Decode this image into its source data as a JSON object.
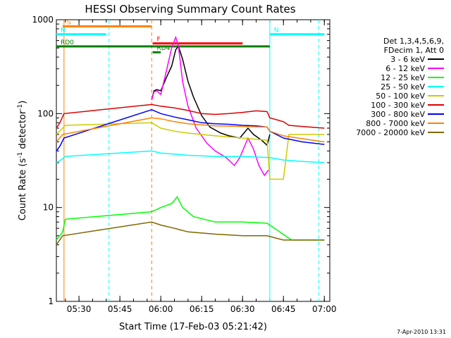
{
  "chart_data": {
    "type": "line",
    "title": "HESSI Observing Summary Count Rates",
    "xlabel": "Start Time (17-Feb-03 05:21:42)",
    "ylabel": "Count Rate (s⁻¹ detector⁻¹)",
    "ylabel_main": "Count Rate (s",
    "ylabel_sup1": "-1",
    "ylabel_mid": " detector",
    "ylabel_sup2": "-1",
    "ylabel_end": ")",
    "x_scale": "time",
    "x_range": [
      "05:21:42",
      "07:02:00"
    ],
    "y_scale": "log",
    "y_range": [
      1,
      1000
    ],
    "x_ticks": [
      "05:30",
      "05:45",
      "06:00",
      "06:15",
      "06:30",
      "06:45",
      "07:00"
    ],
    "y_ticks": [
      "1",
      "10",
      "100",
      "1000"
    ],
    "timestamp": "7-Apr-2010 13:31",
    "legend_header": [
      "Det 1,3,4,5,6,9,",
      "FDecim 1, Att 0"
    ],
    "legend_placement": "right",
    "series": [
      {
        "name": "3 - 6 keV",
        "color": "#000000",
        "points": [
          [
            "05:56:40",
            140
          ],
          [
            "05:57:30",
            175
          ],
          [
            "05:58:30",
            180
          ],
          [
            "06:00:00",
            175
          ],
          [
            "06:02:00",
            240
          ],
          [
            "06:04:00",
            320
          ],
          [
            "06:05:30",
            480
          ],
          [
            "06:06:30",
            520
          ],
          [
            "06:08:00",
            380
          ],
          [
            "06:10:00",
            220
          ],
          [
            "06:12:00",
            150
          ],
          [
            "06:15:00",
            95
          ],
          [
            "06:18:00",
            72
          ],
          [
            "06:22:00",
            62
          ],
          [
            "06:25:00",
            58
          ],
          [
            "06:29:00",
            55
          ],
          [
            "06:32:00",
            70
          ],
          [
            "06:34:00",
            60
          ],
          [
            "06:37:00",
            52
          ],
          [
            "06:39:00",
            46
          ],
          [
            "06:40:00",
            60
          ]
        ]
      },
      {
        "name": "6 - 12 keV",
        "color": "#ff00ff",
        "points": [
          [
            "05:56:40",
            140
          ],
          [
            "05:57:30",
            170
          ],
          [
            "05:58:30",
            175
          ],
          [
            "06:00:00",
            160
          ],
          [
            "06:02:00",
            280
          ],
          [
            "06:04:00",
            500
          ],
          [
            "06:05:30",
            650
          ],
          [
            "06:06:30",
            520
          ],
          [
            "06:08:00",
            220
          ],
          [
            "06:10:00",
            120
          ],
          [
            "06:13:00",
            70
          ],
          [
            "06:17:00",
            48
          ],
          [
            "06:20:00",
            40
          ],
          [
            "06:24:00",
            34
          ],
          [
            "06:27:00",
            28
          ],
          [
            "06:29:00",
            34
          ],
          [
            "06:32:00",
            55
          ],
          [
            "06:34:00",
            42
          ],
          [
            "06:36:00",
            28
          ],
          [
            "06:38:00",
            22
          ],
          [
            "06:39:30",
            25
          ]
        ]
      },
      {
        "name": "12 - 25 keV",
        "color": "#00ff00",
        "points": [
          [
            "05:21:42",
            4.5
          ],
          [
            "05:24:00",
            5.5
          ],
          [
            "05:25:00",
            7.5
          ],
          [
            "05:56:40",
            9
          ],
          [
            "06:00:00",
            10
          ],
          [
            "06:04:00",
            11
          ],
          [
            "06:06:00",
            13
          ],
          [
            "06:08:00",
            10
          ],
          [
            "06:12:00",
            8
          ],
          [
            "06:20:00",
            7
          ],
          [
            "06:30:00",
            7
          ],
          [
            "06:39:00",
            6.8
          ],
          [
            "06:48:00",
            4.5
          ],
          [
            "06:58:00",
            4.5
          ],
          [
            "07:00:00",
            4.5
          ]
        ]
      },
      {
        "name": "25 - 50 keV",
        "color": "#00ffff",
        "points": [
          [
            "05:21:42",
            30
          ],
          [
            "05:24:00",
            33
          ],
          [
            "05:25:00",
            35
          ],
          [
            "05:56:40",
            40
          ],
          [
            "06:00:00",
            38
          ],
          [
            "06:05:00",
            37
          ],
          [
            "06:10:00",
            36
          ],
          [
            "06:20:00",
            35
          ],
          [
            "06:30:00",
            35
          ],
          [
            "06:40:00",
            34
          ],
          [
            "06:45:00",
            32
          ],
          [
            "06:52:00",
            31
          ],
          [
            "07:00:00",
            30
          ]
        ]
      },
      {
        "name": "50 - 100 keV",
        "color": "#cccc00",
        "points": [
          [
            "05:21:42",
            60
          ],
          [
            "05:24:00",
            70
          ],
          [
            "05:25:00",
            75
          ],
          [
            "05:56:40",
            80
          ],
          [
            "06:00:00",
            70
          ],
          [
            "06:05:00",
            65
          ],
          [
            "06:10:00",
            62
          ],
          [
            "06:20:00",
            58
          ],
          [
            "06:30:00",
            55
          ],
          [
            "06:39:00",
            52
          ],
          [
            "06:40:00",
            20
          ],
          [
            "06:45:00",
            20
          ],
          [
            "06:47:00",
            60
          ],
          [
            "06:52:00",
            60
          ],
          [
            "07:00:00",
            60
          ]
        ]
      },
      {
        "name": "100 - 300 keV",
        "color": "#dd0000",
        "points": [
          [
            "05:21:42",
            70
          ],
          [
            "05:23:00",
            80
          ],
          [
            "05:24:30",
            100
          ],
          [
            "05:56:40",
            125
          ],
          [
            "06:00:00",
            120
          ],
          [
            "06:05:00",
            115
          ],
          [
            "06:10:00",
            108
          ],
          [
            "06:15:00",
            100
          ],
          [
            "06:20:00",
            98
          ],
          [
            "06:25:00",
            100
          ],
          [
            "06:30:00",
            103
          ],
          [
            "06:35:00",
            107
          ],
          [
            "06:39:00",
            105
          ],
          [
            "06:40:00",
            90
          ],
          [
            "06:45:00",
            82
          ],
          [
            "06:47:00",
            75
          ],
          [
            "06:52:00",
            73
          ],
          [
            "07:00:00",
            70
          ]
        ]
      },
      {
        "name": "300 - 800 keV",
        "color": "#0000ff",
        "points": [
          [
            "05:21:42",
            40
          ],
          [
            "05:23:00",
            45
          ],
          [
            "05:24:30",
            55
          ],
          [
            "05:56:40",
            110
          ],
          [
            "06:00:00",
            100
          ],
          [
            "06:05:00",
            92
          ],
          [
            "06:10:00",
            86
          ],
          [
            "06:15:00",
            80
          ],
          [
            "06:20:00",
            78
          ],
          [
            "06:25:00",
            77
          ],
          [
            "06:30:00",
            75
          ],
          [
            "06:35:00",
            74
          ],
          [
            "06:39:00",
            72
          ],
          [
            "06:40:00",
            65
          ],
          [
            "06:45:00",
            55
          ],
          [
            "06:52:00",
            50
          ],
          [
            "07:00:00",
            47
          ]
        ]
      },
      {
        "name": "800 - 7000 keV",
        "color": "#ff8000",
        "points": [
          [
            "05:21:42",
            50
          ],
          [
            "05:24:00",
            60
          ],
          [
            "05:56:40",
            90
          ],
          [
            "06:00:00",
            88
          ],
          [
            "06:05:00",
            82
          ],
          [
            "06:10:00",
            78
          ],
          [
            "06:20:00",
            74
          ],
          [
            "06:30:00",
            73
          ],
          [
            "06:39:00",
            72
          ],
          [
            "06:40:00",
            65
          ],
          [
            "06:45:00",
            58
          ],
          [
            "06:52:00",
            54
          ],
          [
            "07:00:00",
            50
          ]
        ]
      },
      {
        "name": "7000 - 20000 keV",
        "color": "#806600",
        "points": [
          [
            "05:21:42",
            4
          ],
          [
            "05:24:00",
            5
          ],
          [
            "05:56:40",
            7
          ],
          [
            "06:00:00",
            6.5
          ],
          [
            "06:05:00",
            6
          ],
          [
            "06:10:00",
            5.5
          ],
          [
            "06:20:00",
            5.2
          ],
          [
            "06:30:00",
            5
          ],
          [
            "06:39:00",
            5
          ],
          [
            "06:45:00",
            4.5
          ],
          [
            "06:52:00",
            4.5
          ],
          [
            "07:00:00",
            4.5
          ]
        ]
      }
    ],
    "flag_bars": [
      {
        "label": "S",
        "color": "#ff8000",
        "start": "05:24:00",
        "end": "05:56:40",
        "level": 850
      },
      {
        "label": "N",
        "color": "#00ffff",
        "start": "05:21:42",
        "end": "05:40:00",
        "level": 700
      },
      {
        "label": "N",
        "color": "#00ffff",
        "start": "06:40:00",
        "end": "07:00:00",
        "level": 700
      },
      {
        "label": "F",
        "color": "#ff0000",
        "start": "05:57:00",
        "end": "06:30:00",
        "level": 560
      },
      {
        "label": "RD0",
        "color": "#008000",
        "start": "05:21:42",
        "end": "06:40:00",
        "level": 520
      },
      {
        "label": "RD4",
        "color": "#008000",
        "start": "05:57:00",
        "end": "06:00:00",
        "level": 450
      }
    ],
    "vertical_markers": [
      {
        "time": "05:24:30",
        "color": "#ff8000",
        "style": "solid"
      },
      {
        "time": "05:41:00",
        "color": "#00ffff",
        "style": "dashed"
      },
      {
        "time": "05:56:40",
        "color": "#ff8000",
        "style": "dashed"
      },
      {
        "time": "06:40:00",
        "color": "#00ffff",
        "style": "solid"
      },
      {
        "time": "06:58:00",
        "color": "#00ffff",
        "style": "dashed"
      }
    ]
  }
}
